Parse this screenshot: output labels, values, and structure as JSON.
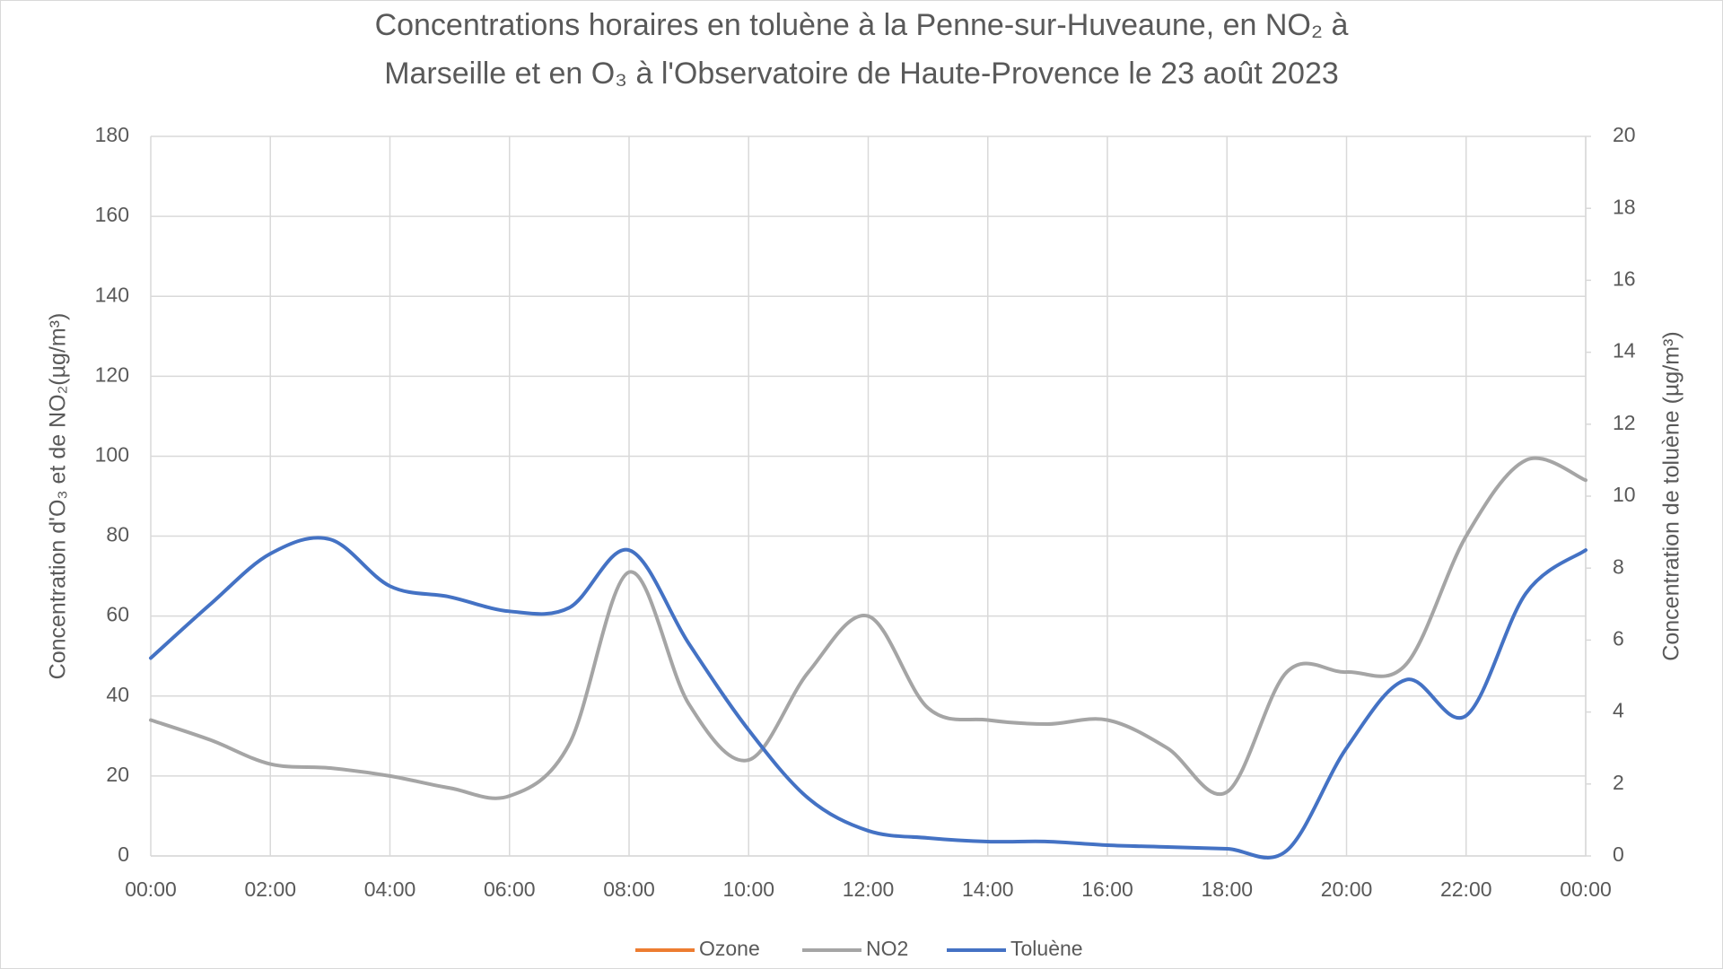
{
  "chart_data": {
    "type": "line",
    "title": [
      "Concentrations horaires en toluène à la Penne-sur-Huveaune,  en NO₂ à",
      "Marseille et en O₃ à l'Observatoire de Haute-Provence le 23 août 2023"
    ],
    "y_label": "Concentration d'O₃ et de NO₂(µg/m³)",
    "y2_label": "Concentration de toluène (µg/m³)",
    "categories": [
      "00:00",
      null,
      "02:00",
      null,
      "04:00",
      null,
      "06:00",
      null,
      "08:00",
      null,
      "10:00",
      null,
      "12:00",
      null,
      "14:00",
      null,
      "16:00",
      null,
      "18:00",
      null,
      "20:00",
      null,
      "22:00",
      null,
      "00:00"
    ],
    "series": [
      {
        "name": "Ozone",
        "color": "#ed7d31",
        "values": [
          null,
          null,
          null,
          null,
          null,
          null,
          null,
          null,
          null,
          null,
          null,
          null,
          null,
          null,
          null,
          null,
          null,
          null,
          null,
          null,
          null,
          null,
          null,
          null,
          null
        ]
      },
      {
        "name": "NO2",
        "color": "#a5a5a5",
        "values": [
          34,
          29,
          23,
          22,
          20,
          17,
          15,
          28,
          71,
          38,
          24,
          46,
          60,
          37,
          34,
          33,
          34,
          27,
          16,
          46,
          46,
          48,
          80,
          99,
          94
        ]
      },
      {
        "name": "Toluène",
        "color": "#4472c4",
        "axis": "y2",
        "values": [
          5.5,
          7.0,
          8.4,
          8.8,
          7.5,
          7.2,
          6.8,
          6.9,
          8.5,
          5.9,
          3.5,
          1.6,
          0.7,
          0.5,
          0.4,
          0.4,
          0.3,
          0.25,
          0.2,
          0.15,
          3.0,
          4.9,
          3.9,
          7.3,
          8.5
        ]
      }
    ],
    "ylim": [
      0,
      180
    ],
    "yticks": [
      0,
      20,
      40,
      60,
      80,
      100,
      120,
      140,
      160,
      180
    ],
    "y2lim": [
      0,
      20
    ],
    "y2ticks": [
      0,
      2,
      4,
      6,
      8,
      10,
      12,
      14,
      16,
      18,
      20
    ],
    "grid": true,
    "smooth": true,
    "legend": "bottom"
  }
}
